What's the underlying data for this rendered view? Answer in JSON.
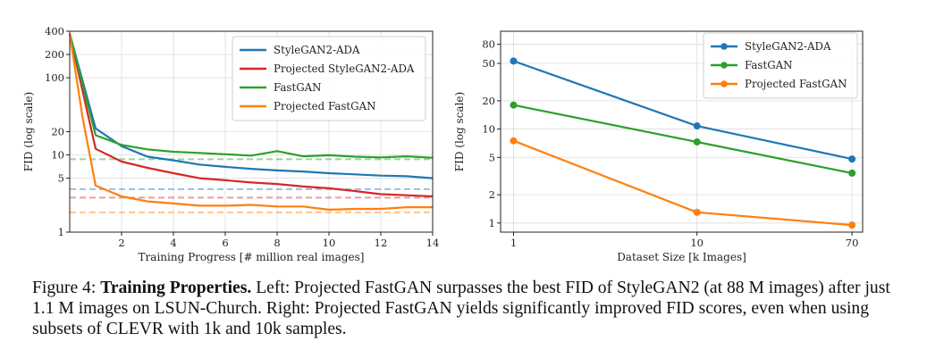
{
  "chart_data": [
    {
      "type": "line",
      "scale": "log-y",
      "xlabel": "Training Progress [# million real images]",
      "ylabel": "FID (log scale)",
      "xlim": [
        0,
        14
      ],
      "ylim": [
        1,
        400
      ],
      "xticks": [
        2,
        4,
        6,
        8,
        10,
        12,
        14
      ],
      "yticks": [
        1,
        5,
        10,
        20,
        100,
        200,
        400
      ],
      "grid": true,
      "legend_position": "top-right",
      "series": [
        {
          "name": "StyleGAN2-ADA",
          "color": "#1f77b4",
          "x": [
            0,
            1,
            2,
            3,
            4,
            5,
            6,
            7,
            8,
            9,
            10,
            11,
            12,
            13,
            14
          ],
          "y": [
            370,
            22,
            13,
            9.5,
            8.5,
            7.5,
            7.0,
            6.6,
            6.3,
            6.1,
            5.8,
            5.6,
            5.4,
            5.3,
            5.0
          ],
          "best_fid_dashed": 3.6
        },
        {
          "name": "Projected StyleGAN2-ADA",
          "color": "#d62728",
          "x": [
            0,
            1,
            2,
            3,
            4,
            5,
            6,
            7,
            8,
            9,
            10,
            11,
            12,
            13,
            14
          ],
          "y": [
            370,
            12,
            8.2,
            6.8,
            5.8,
            5.0,
            4.7,
            4.4,
            4.2,
            3.9,
            3.7,
            3.4,
            3.1,
            3.0,
            2.9
          ],
          "best_fid_dashed": 2.8
        },
        {
          "name": "FastGAN",
          "color": "#2ca02c",
          "x": [
            0,
            1,
            2,
            3,
            4,
            5,
            6,
            7,
            8,
            9,
            10,
            11,
            12,
            13,
            14
          ],
          "y": [
            370,
            18,
            13.5,
            11.8,
            11.0,
            10.6,
            10.2,
            9.8,
            11.2,
            9.6,
            9.9,
            9.5,
            9.3,
            9.6,
            9.2
          ],
          "best_fid_dashed": 8.8
        },
        {
          "name": "Projected FastGAN",
          "color": "#ff7f0e",
          "x": [
            0,
            0.5,
            1,
            2,
            3,
            4,
            5,
            6,
            7,
            8,
            9,
            10,
            11,
            12,
            13,
            14
          ],
          "y": [
            370,
            30,
            4.0,
            2.9,
            2.5,
            2.35,
            2.2,
            2.2,
            2.25,
            2.15,
            2.15,
            1.95,
            2.0,
            2.0,
            2.1,
            2.1
          ],
          "best_fid_dashed": 1.8
        }
      ]
    },
    {
      "type": "line",
      "scale": "log-log",
      "xlabel": "Dataset Size [k Images]",
      "ylabel": "FID (log scale)",
      "xlim": [
        0.85,
        80
      ],
      "ylim": [
        0.8,
        110
      ],
      "xticks": [
        1,
        10,
        70
      ],
      "yticks": [
        1,
        2,
        5,
        10,
        20,
        50,
        80
      ],
      "grid": true,
      "legend_position": "top-right",
      "series": [
        {
          "name": "StyleGAN2-ADA",
          "color": "#1f77b4",
          "x": [
            1,
            10,
            70
          ],
          "y": [
            53,
            10.8,
            4.8
          ]
        },
        {
          "name": "FastGAN",
          "color": "#2ca02c",
          "x": [
            1,
            10,
            70
          ],
          "y": [
            18,
            7.3,
            3.4
          ]
        },
        {
          "name": "Projected FastGAN",
          "color": "#ff7f0e",
          "x": [
            1,
            10,
            70
          ],
          "y": [
            7.5,
            1.3,
            0.95
          ]
        }
      ]
    }
  ],
  "caption": {
    "label": "Figure 4:",
    "title": "Training Properties.",
    "body": "Left: Projected FastGAN surpasses the best FID of StyleGAN2 (at 88 M images) after just 1.1 M images on LSUN-Church. Right: Projected FastGAN yields significantly improved FID scores, even when using subsets of CLEVR with 1k and 10k samples."
  }
}
